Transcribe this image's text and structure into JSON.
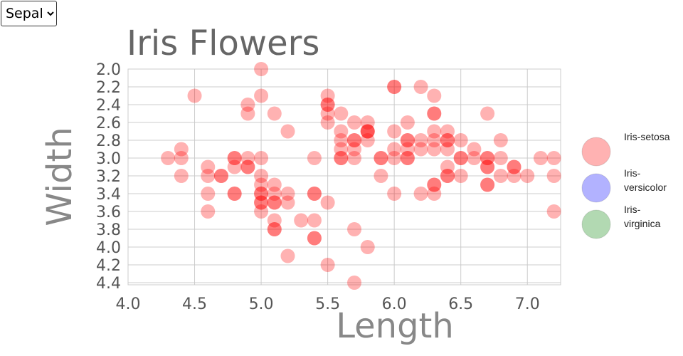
{
  "dropdown": {
    "value": "Sepal"
  },
  "chart_data": {
    "type": "scatter",
    "title": "Iris Flowers",
    "x_label": "Length",
    "y_label": "Width",
    "xlim": [
      4.0,
      7.25
    ],
    "ylim": [
      2.0,
      4.4
    ],
    "y_reversed": true,
    "grid": true,
    "legend": "right",
    "xticks": [
      {
        "value": 4.0,
        "label": "4.0"
      },
      {
        "value": 4.5,
        "label": "4.5"
      },
      {
        "value": 5.0,
        "label": "5.0"
      },
      {
        "value": 5.5,
        "label": "5.5"
      },
      {
        "value": 6.0,
        "label": "6.0"
      },
      {
        "value": 6.5,
        "label": "6.5"
      },
      {
        "value": 7.0,
        "label": "7.0"
      }
    ],
    "yticks": [
      {
        "value": 2.0,
        "label": "2.0"
      },
      {
        "value": 2.2,
        "label": "2.2"
      },
      {
        "value": 2.4,
        "label": "2.4"
      },
      {
        "value": 2.6,
        "label": "2.6"
      },
      {
        "value": 2.8,
        "label": "2.8"
      },
      {
        "value": 3.0,
        "label": "3.0"
      },
      {
        "value": 3.2,
        "label": "3.2"
      },
      {
        "value": 3.4,
        "label": "3.4"
      },
      {
        "value": 3.6,
        "label": "3.6"
      },
      {
        "value": 3.8,
        "label": "3.8"
      },
      {
        "value": 4.0,
        "label": "4.0"
      },
      {
        "value": 4.2,
        "label": "4.2"
      },
      {
        "value": 4.4,
        "label": "4.4"
      }
    ],
    "series": [
      {
        "name": "Iris-setosa",
        "color": "rgba(255,0,0,0.3)",
        "x": [
          5.0,
          6.0,
          6.0,
          6.2,
          4.5,
          5.0,
          5.5,
          6.3,
          4.9,
          5.5,
          5.5,
          4.9,
          5.1,
          5.5,
          5.6,
          6.3,
          6.3,
          6.7,
          5.5,
          5.7,
          5.8,
          6.1,
          5.2,
          5.6,
          5.8,
          5.8,
          5.8,
          6.0,
          6.3,
          6.4,
          5.6,
          5.7,
          5.7,
          5.8,
          6.1,
          6.1,
          6.2,
          6.3,
          6.4,
          6.4,
          6.5,
          6.8,
          4.4,
          5.6,
          5.7,
          6.0,
          6.1,
          6.2,
          6.3,
          6.4,
          6.6,
          4.3,
          4.4,
          4.8,
          4.8,
          4.9,
          5.0,
          5.4,
          5.6,
          5.6,
          5.7,
          5.9,
          5.9,
          6.0,
          6.1,
          6.1,
          6.5,
          6.5,
          6.6,
          6.7,
          6.7,
          6.8,
          7.1,
          7.2,
          4.6,
          4.8,
          4.9,
          4.9,
          6.4,
          6.7,
          6.7,
          6.9,
          6.9,
          4.4,
          4.6,
          4.7,
          4.7,
          5.0,
          5.9,
          6.4,
          6.4,
          6.5,
          6.8,
          6.9,
          7.0,
          7.2,
          5.0,
          5.1,
          6.3,
          6.3,
          6.7,
          6.7,
          4.6,
          4.8,
          4.8,
          5.0,
          5.0,
          5.1,
          5.2,
          5.4,
          5.4,
          6.0,
          6.2,
          6.3,
          5.0,
          5.0,
          5.1,
          5.1,
          5.2,
          5.5,
          4.6,
          5.0,
          7.2,
          5.1,
          5.3,
          5.4,
          5.1,
          5.1,
          5.7,
          5.4,
          5.4,
          5.8,
          5.2,
          5.5,
          5.7
        ],
        "y": [
          2.0,
          2.2,
          2.2,
          2.2,
          2.3,
          2.3,
          2.3,
          2.3,
          2.4,
          2.4,
          2.4,
          2.5,
          2.5,
          2.5,
          2.5,
          2.5,
          2.5,
          2.5,
          2.6,
          2.6,
          2.6,
          2.6,
          2.7,
          2.7,
          2.7,
          2.7,
          2.7,
          2.7,
          2.7,
          2.7,
          2.8,
          2.8,
          2.8,
          2.8,
          2.8,
          2.8,
          2.8,
          2.8,
          2.8,
          2.8,
          2.8,
          2.8,
          2.9,
          2.9,
          2.9,
          2.9,
          2.9,
          2.9,
          2.9,
          2.9,
          2.9,
          3.0,
          3.0,
          3.0,
          3.0,
          3.0,
          3.0,
          3.0,
          3.0,
          3.0,
          3.0,
          3.0,
          3.0,
          3.0,
          3.0,
          3.0,
          3.0,
          3.0,
          3.0,
          3.0,
          3.0,
          3.0,
          3.0,
          3.0,
          3.1,
          3.1,
          3.1,
          3.1,
          3.1,
          3.1,
          3.1,
          3.1,
          3.1,
          3.2,
          3.2,
          3.2,
          3.2,
          3.2,
          3.2,
          3.2,
          3.2,
          3.2,
          3.2,
          3.2,
          3.2,
          3.2,
          3.3,
          3.3,
          3.3,
          3.3,
          3.3,
          3.3,
          3.4,
          3.4,
          3.4,
          3.4,
          3.4,
          3.4,
          3.4,
          3.4,
          3.4,
          3.4,
          3.4,
          3.4,
          3.5,
          3.5,
          3.5,
          3.5,
          3.5,
          3.5,
          3.6,
          3.6,
          3.6,
          3.7,
          3.7,
          3.7,
          3.8,
          3.8,
          3.8,
          3.9,
          3.9,
          4.0,
          4.1,
          4.2,
          4.4
        ]
      },
      {
        "name": "Iris-versicolor",
        "color": "rgba(0,0,255,0.3)",
        "x": [],
        "y": []
      },
      {
        "name": "Iris-virginica",
        "color": "rgba(0,128,0,0.3)",
        "x": [],
        "y": []
      }
    ]
  }
}
